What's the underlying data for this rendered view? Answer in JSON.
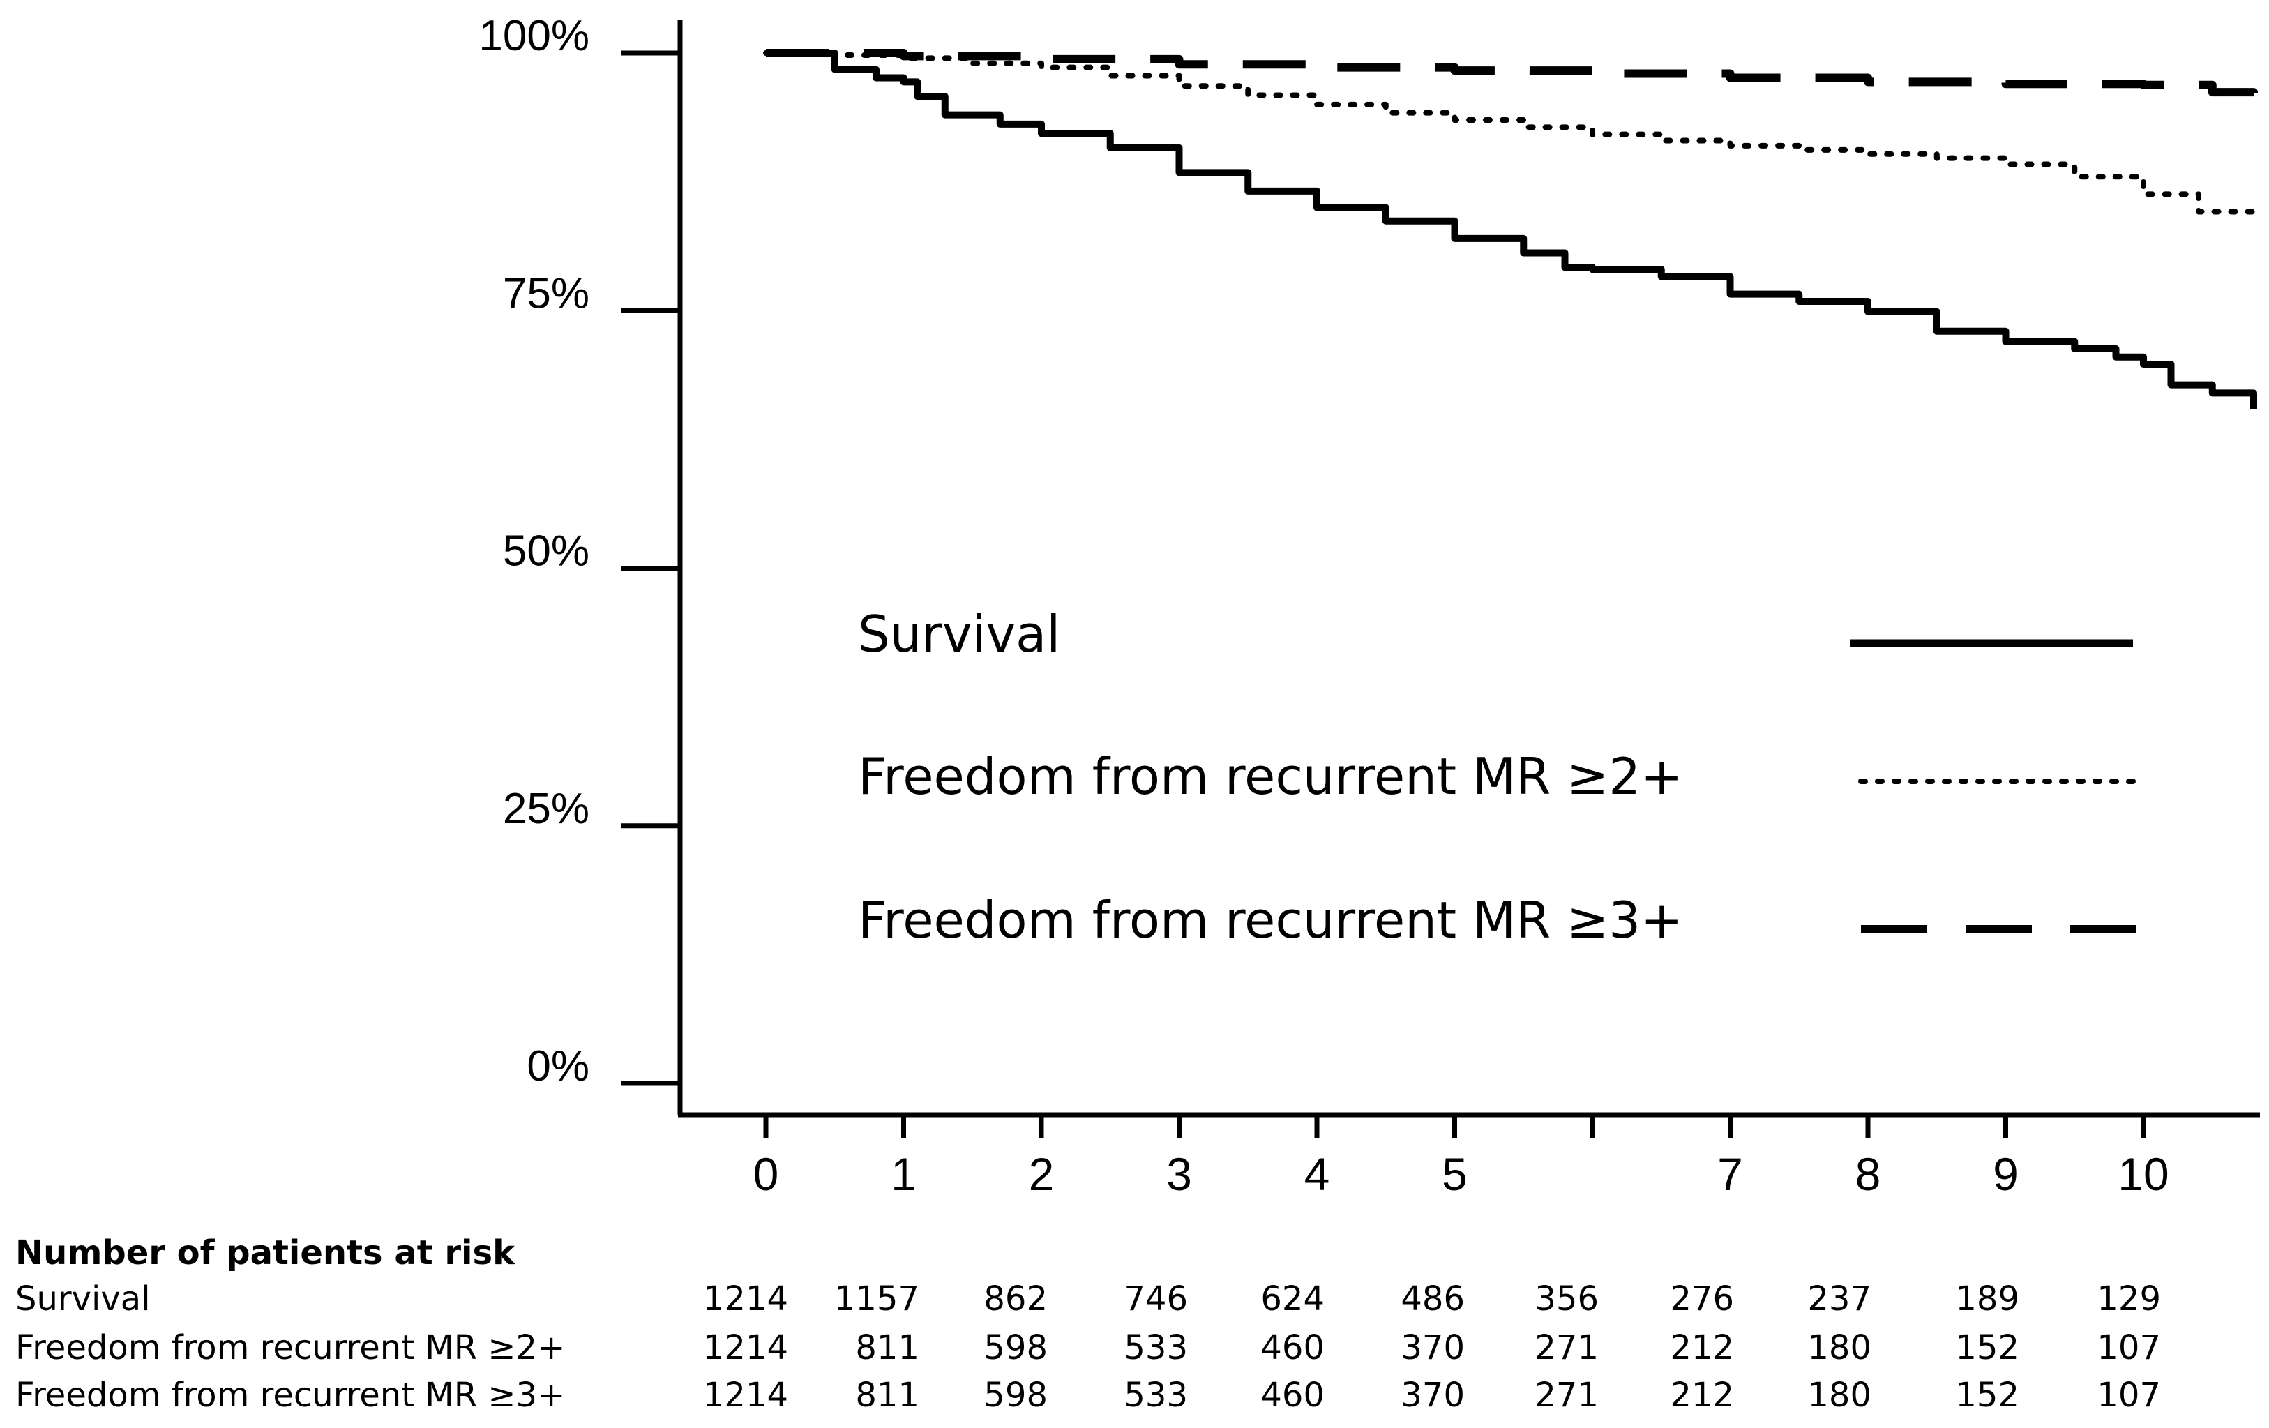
{
  "chart_data": {
    "type": "line",
    "title": "",
    "xlabel": "",
    "ylabel": "",
    "xlim": [
      0,
      10.8
    ],
    "ylim": [
      0,
      100
    ],
    "y_ticks": [
      {
        "value": 0,
        "label": "0%"
      },
      {
        "value": 25,
        "label": "25%"
      },
      {
        "value": 50,
        "label": "50%"
      },
      {
        "value": 75,
        "label": "75%"
      },
      {
        "value": 100,
        "label": "100%"
      }
    ],
    "x_ticks": [
      {
        "value": 0,
        "label": "0"
      },
      {
        "value": 1,
        "label": "1"
      },
      {
        "value": 2,
        "label": "2"
      },
      {
        "value": 3,
        "label": "3"
      },
      {
        "value": 4,
        "label": "4"
      },
      {
        "value": 5,
        "label": "5"
      },
      {
        "value": 6,
        "label": ""
      },
      {
        "value": 7,
        "label": "7"
      },
      {
        "value": 8,
        "label": "8"
      },
      {
        "value": 9,
        "label": "9"
      },
      {
        "value": 10,
        "label": "10"
      }
    ],
    "series": [
      {
        "name": "Survival",
        "style": "solid",
        "x": [
          0,
          0.5,
          0.8,
          1.0,
          1.1,
          1.3,
          1.7,
          2.0,
          2.5,
          3.0,
          3.5,
          4.0,
          4.5,
          5.0,
          5.5,
          5.8,
          6.0,
          6.5,
          7.0,
          7.5,
          8.0,
          8.5,
          9.0,
          9.5,
          9.8,
          10.0,
          10.2,
          10.5,
          10.8
        ],
        "values": [
          100,
          98.4,
          97.6,
          97.2,
          95.8,
          94.0,
          93.1,
          92.2,
          90.8,
          88.4,
          86.6,
          85.0,
          83.7,
          82.0,
          80.6,
          79.2,
          79.0,
          78.3,
          76.6,
          75.9,
          74.9,
          73.0,
          72.0,
          71.3,
          70.5,
          69.8,
          67.8,
          67.0,
          65.4
        ]
      },
      {
        "name": "Freedom from recurrent MR ≥2+",
        "style": "dotted",
        "x": [
          0,
          0.5,
          1.0,
          1.5,
          2.0,
          2.5,
          3.0,
          3.5,
          4.0,
          4.5,
          5.0,
          5.5,
          6.0,
          6.5,
          7.0,
          7.5,
          8.0,
          8.5,
          9.0,
          9.5,
          10.0,
          10.4,
          10.8
        ],
        "values": [
          100,
          99.8,
          99.5,
          99.0,
          98.6,
          97.8,
          96.8,
          95.9,
          95.0,
          94.2,
          93.5,
          92.8,
          92.1,
          91.5,
          91.0,
          90.6,
          90.2,
          89.8,
          89.2,
          88.0,
          86.3,
          84.6,
          83.8
        ]
      },
      {
        "name": "Freedom from recurrent MR ≥3+",
        "style": "dashed",
        "x": [
          0,
          1.0,
          2.0,
          3.0,
          4.0,
          5.0,
          6.0,
          7.0,
          8.0,
          9.0,
          10.0,
          10.5,
          10.8
        ],
        "values": [
          100,
          99.7,
          99.4,
          98.9,
          98.6,
          98.3,
          98.0,
          97.6,
          97.2,
          97.0,
          96.9,
          96.2,
          95.5
        ]
      }
    ],
    "legend": {
      "position": "center-right",
      "entries": [
        "Survival",
        "Freedom from recurrent MR ≥2+",
        "Freedom from recurrent MR ≥3+"
      ]
    }
  },
  "risk_table": {
    "title": "Number of patients at risk",
    "rows": [
      {
        "label": "Survival",
        "values": [
          "1214",
          "1157",
          "862",
          "746",
          "624",
          "486",
          "356",
          "276",
          "237",
          "189",
          "129"
        ]
      },
      {
        "label": "Freedom from recurrent MR ≥2+",
        "values": [
          "1214",
          "811",
          "598",
          "533",
          "460",
          "370",
          "271",
          "212",
          "180",
          "152",
          "107"
        ]
      },
      {
        "label": "Freedom from recurrent MR ≥3+",
        "values": [
          "1214",
          "811",
          "598",
          "533",
          "460",
          "370",
          "271",
          "212",
          "180",
          "152",
          "107"
        ]
      }
    ]
  }
}
